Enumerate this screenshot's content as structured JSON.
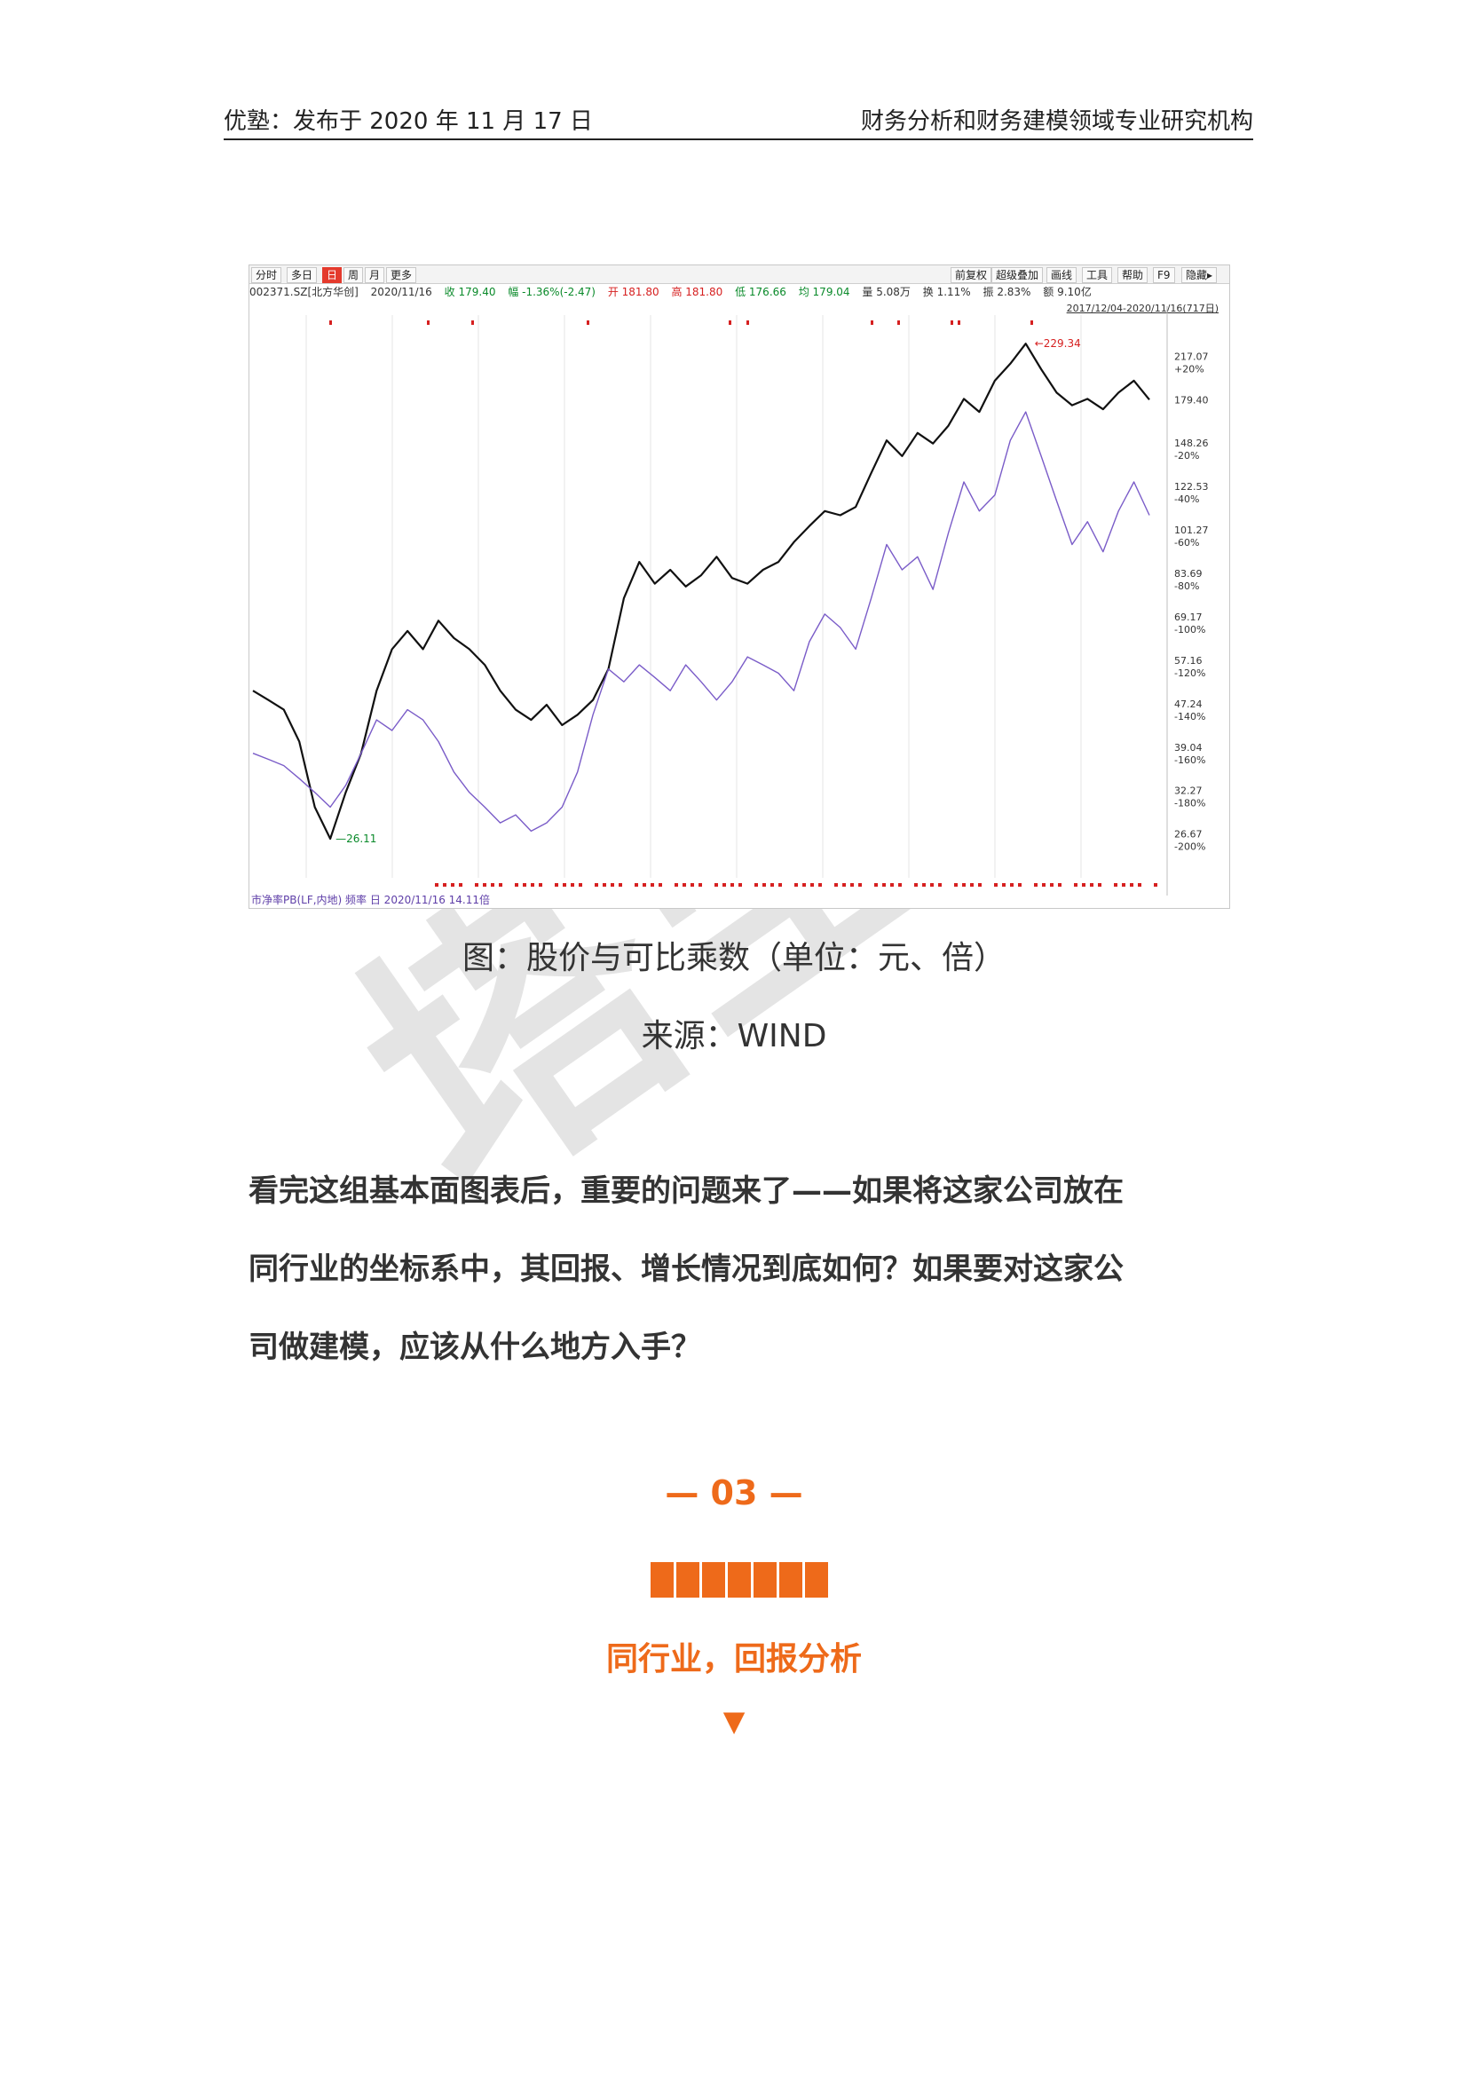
{
  "header": {
    "left": "优塾：发布于 2020 年 11 月 17 日",
    "right": "财务分析和财务建模领域专业研究机构"
  },
  "chart": {
    "toolbar_left": [
      "分时",
      "多日",
      "日",
      "周",
      "月",
      "更多"
    ],
    "toolbar_right": [
      "前复权",
      "超级叠加",
      "画线",
      "工具",
      "帮助",
      "F9",
      "隐藏▸"
    ],
    "quote": {
      "code": "002371.SZ[北方华创]",
      "date": "2020/11/16",
      "close": "收 179.40",
      "change": "幅 -1.36%(-2.47)",
      "open": "开 181.80",
      "high": "高 181.80",
      "low": "低 176.66",
      "avg": "均 179.04",
      "volume": "量 5.08万",
      "turnover": "换 1.11%",
      "amplitude": "振 2.83%",
      "amount": "额 9.10亿"
    },
    "range": "2017/12/04-2020/11/16(717日)",
    "indicator": "市净率PB(LF,内地) 频率 日 2020/11/16 14.11倍",
    "max_label": "229.34",
    "min_label": "26.11"
  },
  "chart_data": {
    "type": "line",
    "series": [
      {
        "name": "",
        "values": [
          50,
          48,
          46,
          40,
          30,
          26.11,
          32,
          38,
          50,
          60,
          65,
          60,
          68,
          63,
          60,
          56,
          50,
          46,
          44,
          47,
          43,
          45,
          48,
          55,
          75,
          88,
          80,
          85,
          79,
          83,
          90,
          82,
          80,
          85,
          88,
          96,
          103,
          110,
          108,
          112,
          130,
          150,
          140,
          155,
          148,
          160,
          180,
          170,
          195,
          210,
          229.34,
          205,
          185,
          175,
          180,
          172,
          185,
          195,
          179.4
        ]
      },
      {
        "name": "",
        "values": [
          38,
          37,
          36,
          34,
          32,
          30,
          33,
          38,
          44,
          42,
          46,
          44,
          40,
          35,
          32,
          30,
          28,
          29,
          27,
          28,
          30,
          35,
          45,
          55,
          52,
          56,
          53,
          50,
          56,
          52,
          48,
          52,
          58,
          56,
          54,
          50,
          62,
          70,
          66,
          60,
          75,
          95,
          85,
          90,
          78,
          100,
          125,
          110,
          118,
          150,
          170,
          140,
          115,
          95,
          105,
          92,
          110,
          125,
          108
        ]
      }
    ],
    "right_axis": [
      {
        "value": "217.07",
        "pct": "+20%"
      },
      {
        "value": "179.40",
        "pct": ""
      },
      {
        "value": "148.26",
        "pct": "-20%"
      },
      {
        "value": "122.53",
        "pct": "-40%"
      },
      {
        "value": "101.27",
        "pct": "-60%"
      },
      {
        "value": "83.69",
        "pct": "-80%"
      },
      {
        "value": "69.17",
        "pct": "-100%"
      },
      {
        "value": "57.16",
        "pct": "-120%"
      },
      {
        "value": "47.24",
        "pct": "-140%"
      },
      {
        "value": "39.04",
        "pct": "-160%"
      },
      {
        "value": "32.27",
        "pct": "-180%"
      },
      {
        "value": "26.67",
        "pct": "-200%"
      }
    ],
    "ylim": [
      22,
      260
    ],
    "grid": true
  },
  "captions": {
    "figure": "图：股价与可比乘数（单位：元、倍）",
    "source": "来源：WIND"
  },
  "paragraph": {
    "line1": "看完这组基本面图表后，重要的问题来了——如果将这家公司放在",
    "line2": "同行业的坐标系中，其回报、增长情况到底如何？如果要对这家公",
    "line3": "司做建模，应该从什么地方入手？"
  },
  "watermark": "塔坚研",
  "section": {
    "number": "— 03 —",
    "title": "同行业，回报分析",
    "arrow": "▼",
    "accent": "#ee6a1a"
  }
}
